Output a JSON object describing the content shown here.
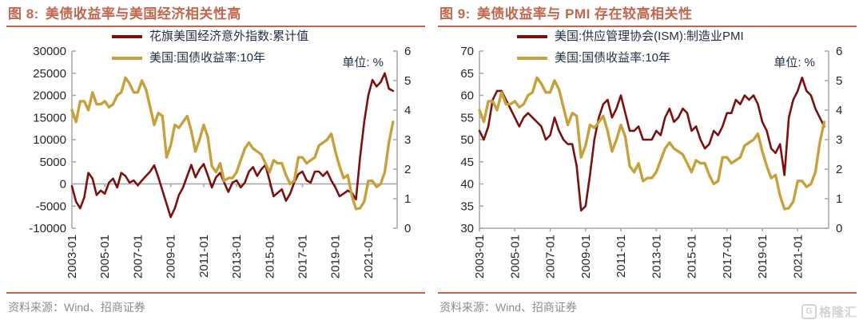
{
  "theme": {
    "accent": "#C3664E",
    "axis_line": "#A6A6A6",
    "tick_text": "#262626",
    "legend_text": "#23304A",
    "source_text": "#8C8C8C",
    "watermark_color": "#D3D3D3",
    "background": "#FFFFFF"
  },
  "watermark": {
    "text": "格隆汇"
  },
  "chart_data": [
    {
      "type": "line",
      "figure_label": "图 8:",
      "title": "美债收益率与美国经济相关性高",
      "unit_label": "单位: %",
      "source": "资料来源：Wind、招商证券",
      "legend_position": "top-inside",
      "grid": "zero-line-only",
      "x_axis": {
        "range": [
          2003,
          2022.75
        ],
        "tick_values": [
          2003,
          2005,
          2007,
          2009,
          2011,
          2013,
          2015,
          2017,
          2019,
          2021
        ],
        "tick_labels": [
          "2003-01",
          "2005-01",
          "2007-01",
          "2009-01",
          "2011-01",
          "2013-01",
          "2015-01",
          "2017-01",
          "2019-01",
          "2021-01"
        ],
        "axis_line_at_left_value": 0
      },
      "left_axis": {
        "min": -10000,
        "max": 30000,
        "tick_values": [
          30000,
          25000,
          20000,
          15000,
          10000,
          5000,
          0,
          -5000,
          -10000
        ],
        "tick_labels": [
          "30000",
          "25000",
          "20000",
          "15000",
          "10000",
          "5000",
          "0",
          "-5000",
          "-10000"
        ]
      },
      "right_axis": {
        "min": 0,
        "max": 6,
        "tick_values": [
          6,
          5,
          4,
          3,
          2,
          1,
          0
        ],
        "tick_labels": [
          "6",
          "5",
          "4",
          "3",
          "2",
          "1",
          "0"
        ]
      },
      "series": [
        {
          "name": "花旗美国经济意外指数:累计值",
          "color": "#7B100F",
          "width": 2.6,
          "axis": "left",
          "x_start": 2003,
          "x_step": 0.25,
          "values": [
            -500,
            -4000,
            -5500,
            -3000,
            2500,
            1200,
            -2500,
            -1500,
            -2200,
            300,
            1200,
            -800,
            2500,
            1800,
            300,
            800,
            -300,
            800,
            1800,
            2800,
            4200,
            1500,
            -1500,
            -4500,
            -7500,
            -5500,
            -2500,
            -800,
            1800,
            4300,
            1500,
            3300,
            4500,
            2000,
            -800,
            1500,
            2500,
            300,
            -1800,
            300,
            800,
            -800,
            300,
            2800,
            3800,
            1800,
            3300,
            4300,
            800,
            -2800,
            -2000,
            -1200,
            -3800,
            -2200,
            300,
            2200,
            2800,
            800,
            300,
            2800,
            2800,
            1800,
            2800,
            800,
            -800,
            -2800,
            -2200,
            -1500,
            -2000,
            -3500,
            6000,
            14000,
            20000,
            23500,
            22000,
            23000,
            25000,
            21500,
            21000
          ]
        },
        {
          "name": "美国:国债收益率:10年",
          "color": "#C7A13C",
          "width": 3.4,
          "axis": "right",
          "x_start": 2003,
          "x_step": 0.25,
          "values": [
            4.0,
            3.6,
            4.3,
            4.3,
            4.0,
            4.6,
            4.2,
            4.2,
            4.3,
            4.1,
            4.2,
            4.5,
            4.6,
            5.1,
            4.9,
            4.6,
            4.6,
            5.0,
            4.7,
            4.1,
            3.5,
            3.9,
            3.8,
            2.4,
            2.8,
            3.5,
            3.4,
            3.6,
            3.8,
            3.3,
            2.6,
            3.0,
            3.5,
            3.1,
            2.1,
            1.9,
            2.2,
            1.6,
            1.7,
            1.7,
            1.9,
            2.3,
            2.7,
            2.9,
            2.7,
            2.6,
            2.5,
            2.2,
            1.9,
            2.3,
            2.2,
            2.2,
            1.8,
            1.5,
            1.6,
            2.4,
            2.4,
            2.2,
            2.3,
            2.4,
            2.8,
            2.9,
            3.0,
            3.2,
            2.6,
            2.1,
            1.7,
            1.8,
            1.1,
            0.65,
            0.68,
            0.9,
            1.6,
            1.6,
            1.4,
            1.5,
            1.9,
            2.9,
            3.6
          ]
        }
      ]
    },
    {
      "type": "line",
      "figure_label": "图 9:",
      "title": "美债收益率与 PMI 存在较高相关性",
      "unit_label": "单位: %",
      "source": "资料来源：Wind、招商证券",
      "legend_position": "top-inside",
      "grid": "none",
      "x_axis": {
        "range": [
          2003,
          2022.75
        ],
        "tick_values": [
          2003,
          2005,
          2007,
          2009,
          2011,
          2013,
          2015,
          2017,
          2019,
          2021
        ],
        "tick_labels": [
          "2003-01",
          "2005-01",
          "2007-01",
          "2009-01",
          "2011-01",
          "2013-01",
          "2015-01",
          "2017-01",
          "2019-01",
          "2021-01"
        ],
        "axis_line_at_left_value": 30
      },
      "left_axis": {
        "min": 30,
        "max": 70,
        "tick_values": [
          70,
          65,
          60,
          55,
          50,
          45,
          40,
          35,
          30
        ],
        "tick_labels": [
          "70",
          "65",
          "60",
          "55",
          "50",
          "45",
          "40",
          "35",
          "30"
        ]
      },
      "right_axis": {
        "min": 0,
        "max": 6,
        "tick_values": [
          6,
          5,
          4,
          3,
          2,
          1,
          0
        ],
        "tick_labels": [
          "6",
          "5",
          "4",
          "3",
          "2",
          "1",
          "0"
        ]
      },
      "series": [
        {
          "name": "美国:供应管理协会(ISM):制造业PMI",
          "color": "#7B100F",
          "width": 2.6,
          "axis": "left",
          "x_start": 2003,
          "x_step": 0.25,
          "values": [
            52,
            50,
            53,
            59,
            61,
            61,
            59,
            57,
            55,
            53,
            55,
            56,
            55,
            54,
            53,
            50,
            51,
            55,
            52,
            50,
            49,
            49,
            44,
            34,
            35,
            42,
            50,
            55,
            58,
            59,
            55,
            57,
            60,
            56,
            52,
            52,
            53,
            50,
            50,
            50,
            52,
            51,
            55,
            57,
            54,
            55,
            57,
            56,
            52,
            53,
            50,
            48,
            49,
            52,
            51,
            53,
            56,
            56,
            59,
            58,
            60,
            59,
            60,
            58,
            54,
            52,
            48,
            47,
            49,
            42,
            55,
            59,
            61,
            64,
            61,
            60,
            57,
            55,
            53
          ]
        },
        {
          "name": "美国:国债收益率:10年",
          "color": "#C7A13C",
          "width": 3.4,
          "axis": "right",
          "x_start": 2003,
          "x_step": 0.25,
          "values": [
            4.0,
            3.6,
            4.3,
            4.3,
            4.0,
            4.6,
            4.2,
            4.2,
            4.3,
            4.1,
            4.2,
            4.5,
            4.6,
            5.1,
            4.9,
            4.6,
            4.6,
            5.0,
            4.7,
            4.1,
            3.5,
            3.9,
            3.8,
            2.4,
            2.8,
            3.5,
            3.4,
            3.6,
            3.8,
            3.3,
            2.6,
            3.0,
            3.5,
            3.1,
            2.1,
            1.9,
            2.2,
            1.6,
            1.7,
            1.7,
            1.9,
            2.3,
            2.7,
            2.9,
            2.7,
            2.6,
            2.5,
            2.2,
            1.9,
            2.3,
            2.2,
            2.2,
            1.8,
            1.5,
            1.6,
            2.4,
            2.4,
            2.2,
            2.3,
            2.4,
            2.8,
            2.9,
            3.0,
            3.2,
            2.6,
            2.1,
            1.7,
            1.8,
            1.1,
            0.65,
            0.68,
            0.9,
            1.6,
            1.6,
            1.4,
            1.5,
            1.9,
            2.9,
            3.6
          ]
        }
      ]
    }
  ]
}
